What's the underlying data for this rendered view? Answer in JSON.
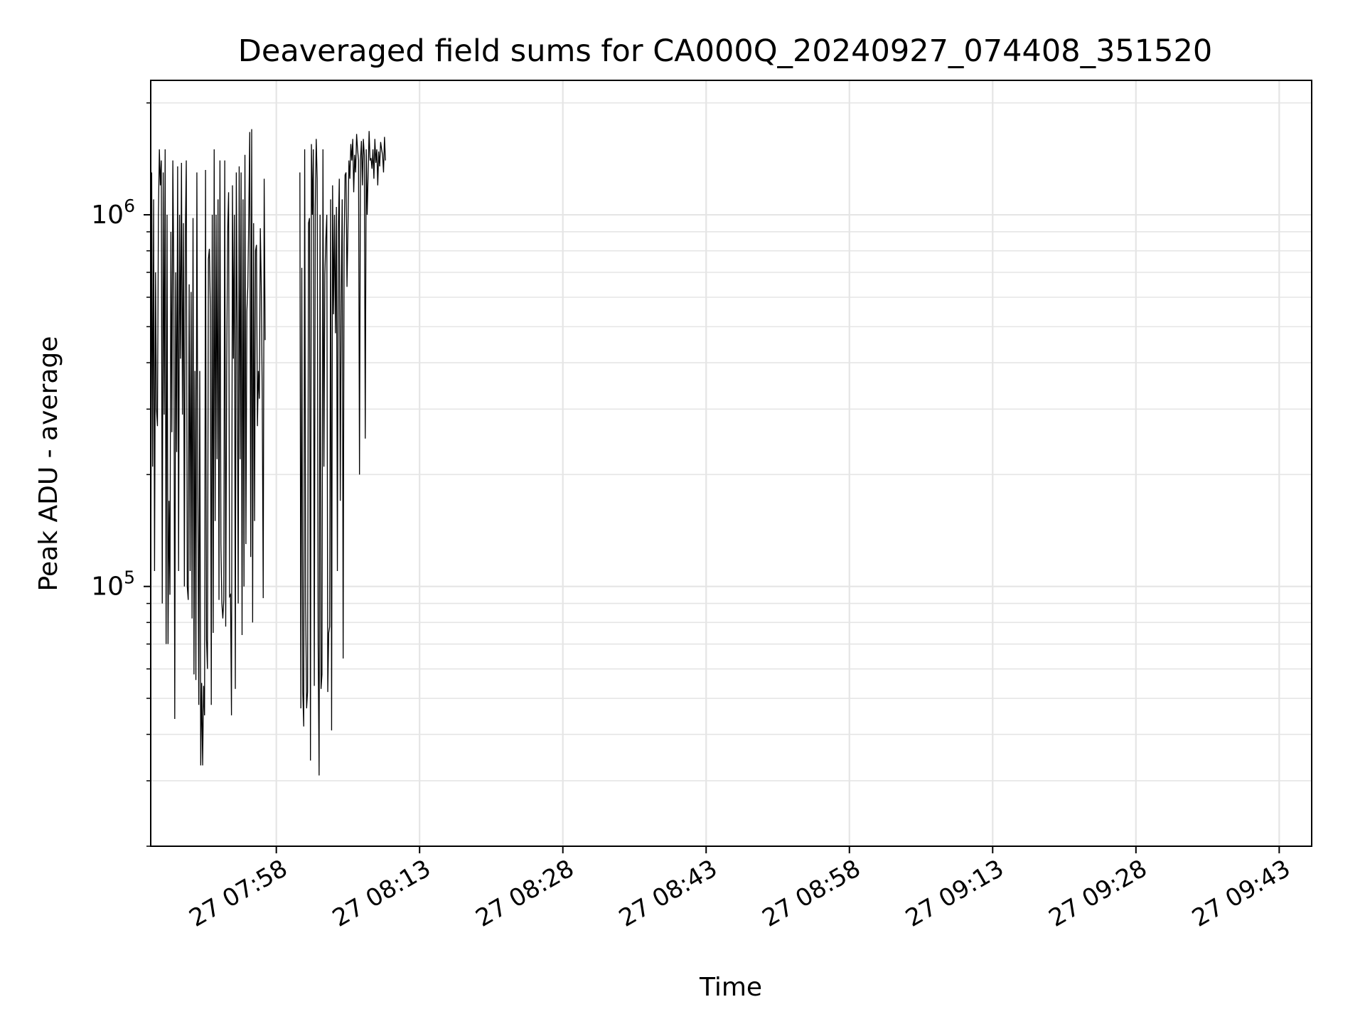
{
  "chart_data": {
    "type": "line",
    "title": "Deaveraged field sums for CA000Q_20240927_074408_351520",
    "xlabel": "Time",
    "ylabel": "Peak ADU - average",
    "x_tick_labels": [
      "27 07:58",
      "27 08:13",
      "27 08:28",
      "27 08:43",
      "27 08:58",
      "27 09:13",
      "27 09:28",
      "27 09:43"
    ],
    "x_ticks": [
      "2024-09-27T07:58",
      "2024-09-27T08:13",
      "2024-09-27T08:28",
      "2024-09-27T08:43",
      "2024-09-27T08:58",
      "2024-09-27T09:13",
      "2024-09-27T09:28",
      "2024-09-27T09:43"
    ],
    "xlim": [
      "2024-09-27T07:44:51",
      "2024-09-27T09:46:24"
    ],
    "y_scale": "log",
    "ylim": [
      20000,
      2300000
    ],
    "y_tick_values": [
      100000,
      1000000
    ],
    "y_tick_labels": [
      {
        "base": "10",
        "exp": "5"
      },
      {
        "base": "10",
        "exp": "6"
      }
    ],
    "grid": true,
    "line_color": "#000000",
    "grid_color": "#e5e5e5",
    "series": [
      {
        "x_start": "2024-09-27T07:44:51",
        "x_step_seconds": 6.04,
        "values": [
          70000,
          1300000,
          210000,
          1100000,
          110000,
          700000,
          300000,
          270000,
          1000000,
          1500000,
          1200000,
          1400000,
          90000,
          1300000,
          290000,
          1500000,
          70000,
          1000000,
          70000,
          170000,
          95000,
          900000,
          260000,
          1400000,
          680000,
          44000,
          700000,
          230000,
          1350000,
          110000,
          1000000,
          410000,
          1380000,
          290000,
          950000,
          100000,
          880000,
          1400000,
          100000,
          92000,
          650000,
          110000,
          620000,
          82000,
          980000,
          58000,
          380000,
          56000,
          1300000,
          190000,
          48000,
          380000,
          33000,
          55000,
          33000,
          54000,
          45000,
          1320000,
          72000,
          60000,
          760000,
          810000,
          560000,
          48000,
          1000000,
          75000,
          1500000,
          150000,
          1000000,
          220000,
          1100000,
          92000,
          1400000,
          130000,
          90000,
          82000,
          92000,
          1400000,
          78000,
          380000,
          900000,
          1150000,
          94000,
          95000,
          45000,
          1200000,
          410000,
          1000000,
          53000,
          1300000,
          480000,
          90000,
          1350000,
          220000,
          1300000,
          74000,
          1100000,
          100000,
          1450000,
          130000,
          550000,
          640000,
          1000000,
          1670000,
          120000,
          1700000,
          80000,
          950000,
          150000,
          800000,
          830000,
          270000,
          380000,
          320000,
          920000,
          640000,
          320000,
          93000,
          1250000,
          460000
        ]
      },
      {
        "x_start": "2024-09-27T08:00:28",
        "x_step_seconds": 6.04,
        "values": [
          1300000,
          47000,
          720000,
          52000,
          42000,
          1500000,
          90000,
          47000,
          52000,
          950000,
          980000,
          34000,
          1550000,
          1000000,
          1500000,
          54000,
          1050000,
          1600000,
          1250000,
          70000,
          31000,
          1000000,
          53000,
          58000,
          1500000,
          210000,
          690000,
          860000,
          1000000,
          52000,
          75000,
          78000,
          1100000,
          41000,
          1200000,
          540000,
          1000000,
          480000,
          1050000,
          110000,
          900000,
          1250000,
          170000,
          580000,
          1100000,
          64000,
          840000,
          1280000,
          1300000,
          640000,
          930000,
          1400000,
          1250000,
          1550000,
          1400000,
          1600000,
          1150000,
          1450000,
          1300000,
          1650000,
          1500000,
          1400000,
          200000,
          1400000,
          1580000,
          1200000,
          1600000,
          1450000,
          250000,
          1500000,
          1000000,
          1300000,
          1680000,
          1400000,
          1420000,
          1330000,
          1500000,
          1250000,
          1600000,
          1380000,
          1500000,
          1200000,
          1480000,
          1350000,
          1570000,
          1500000,
          1450000,
          1300000,
          1620000,
          1400000
        ]
      }
    ]
  }
}
